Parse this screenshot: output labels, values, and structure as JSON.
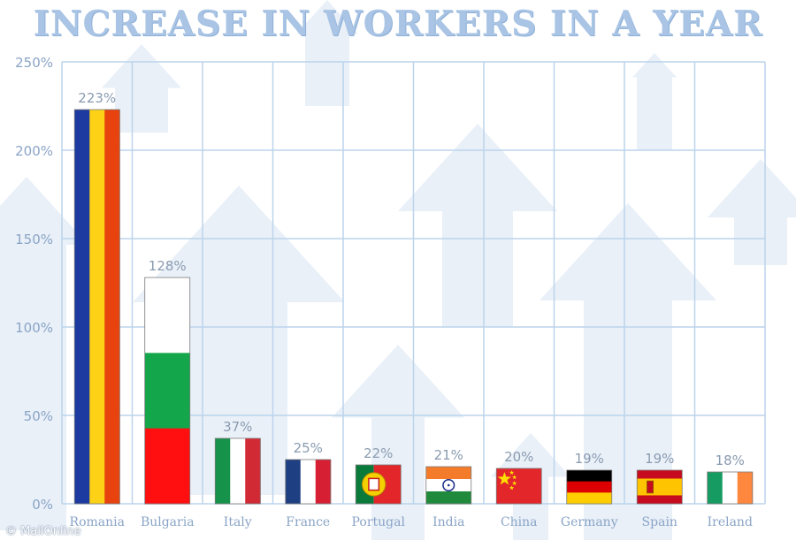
{
  "title": "INCREASE IN WORKERS IN A YEAR",
  "watermark": "© MailOnline",
  "colors": {
    "grid": "#bcd4ec",
    "axis_text": "#8aa4c6",
    "value_label": "#8a9bb0",
    "arrow": "#e9f0f8"
  },
  "chart_data": {
    "type": "bar",
    "title": "INCREASE IN WORKERS IN A YEAR",
    "xlabel": "",
    "ylabel": "",
    "ylim": [
      0,
      250
    ],
    "yticks": [
      0,
      50,
      100,
      150,
      200,
      250
    ],
    "ytick_labels": [
      "0%",
      "50%",
      "100%",
      "150%",
      "200%",
      "250%"
    ],
    "grid": true,
    "categories": [
      "Romania",
      "Bulgaria",
      "Italy",
      "France",
      "Portugal",
      "India",
      "China",
      "Germany",
      "Spain",
      "Ireland"
    ],
    "values": [
      223,
      128,
      37,
      25,
      22,
      21,
      20,
      19,
      19,
      18
    ],
    "value_labels": [
      "223%",
      "128%",
      "37%",
      "25%",
      "22%",
      "21%",
      "20%",
      "19%",
      "19%",
      "18%"
    ],
    "bar_fill": [
      "romania-flag",
      "bulgaria-flag",
      "italy-flag",
      "france-flag",
      "portugal-flag",
      "india-flag",
      "china-flag",
      "germany-flag",
      "spain-flag",
      "ireland-flag"
    ]
  }
}
